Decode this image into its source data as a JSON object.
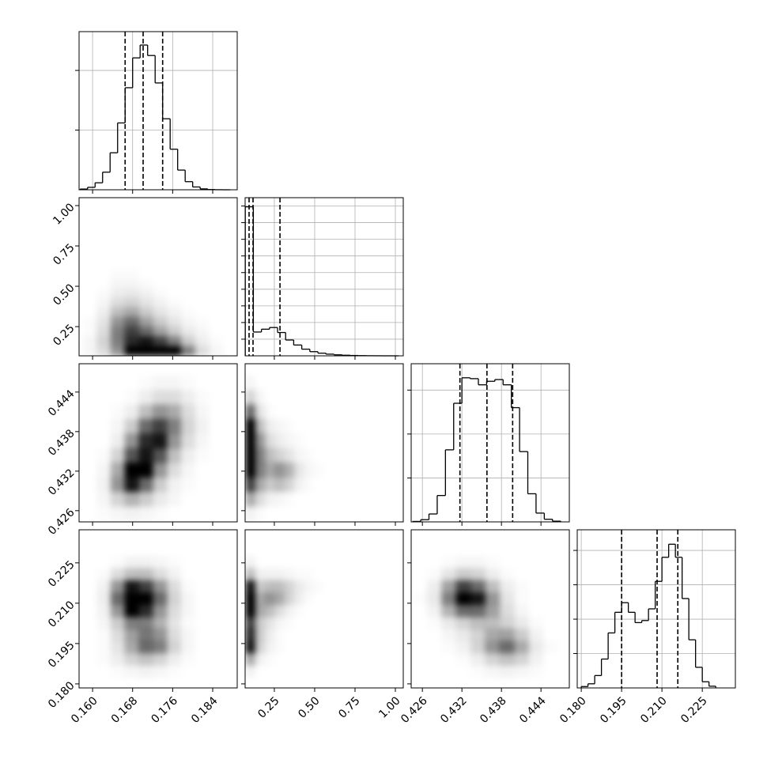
{
  "chart_data": {
    "type": "corner",
    "params": [
      {
        "lim": [
          0.1573,
          0.1889
        ],
        "ticks": [
          {
            "value": 0.16,
            "label": "0.160"
          },
          0.168,
          0.176,
          0.184
        ],
        "hist_bins": [
          0.1575,
          0.159,
          0.1605,
          0.162,
          0.1635,
          0.165,
          0.1665,
          0.168,
          0.1695,
          0.171,
          0.1725,
          0.174,
          0.1755,
          0.177,
          0.1785,
          0.18,
          0.1815,
          0.183,
          0.1845,
          0.186,
          0.1875
        ],
        "hist_counts": [
          12,
          41,
          117,
          295,
          620,
          1120,
          1710,
          2210,
          2425,
          2250,
          1790,
          1190,
          680,
          330,
          136,
          47,
          15,
          4,
          1,
          0
        ],
        "hist_ylim": [
          0,
          2650
        ],
        "hist_yticks": [
          1000,
          2000
        ],
        "quantiles": [
          0.1665,
          0.1701,
          0.174
        ],
        "density_edges": [
          0.158,
          0.1608,
          0.1636,
          0.1664,
          0.1692,
          0.172,
          0.1748,
          0.1776,
          0.1804,
          0.1832,
          0.186
        ]
      },
      {
        "lim": [
          0.069,
          1.049
        ],
        "ticks": [
          0.25,
          {
            "value": 0.5,
            "label": "0.50"
          },
          0.75,
          {
            "value": 1,
            "label": "1.00"
          }
        ],
        "hist_bins": [
          0.07,
          0.12,
          0.17,
          0.22,
          0.27,
          0.32,
          0.37,
          0.42,
          0.47,
          0.52,
          0.57,
          0.62,
          0.67,
          0.72,
          0.77,
          0.82,
          0.87,
          0.92,
          0.97,
          1.02
        ],
        "hist_counts": [
          8950,
          1430,
          1600,
          1700,
          1400,
          950,
          650,
          400,
          250,
          160,
          100,
          60,
          35,
          20,
          12,
          6,
          3,
          1,
          0
        ],
        "hist_ylim": [
          0,
          9500
        ],
        "hist_yticks": [
          1000,
          2000,
          3000,
          4000,
          5000,
          6000,
          7000,
          8000,
          9000
        ],
        "quantiles": [
          0.0935,
          0.118,
          0.285
        ],
        "density_edges": [
          0.07,
          0.13,
          0.19,
          0.25,
          0.31,
          0.37,
          0.43,
          0.49,
          0.55,
          0.61,
          0.67
        ]
      },
      {
        "lim": [
          0.4243,
          0.4483
        ],
        "ticks": [
          0.426,
          0.432,
          0.438,
          0.444
        ],
        "hist_bins": [
          0.4245,
          0.42575,
          0.427,
          0.42825,
          0.4295,
          0.43075,
          0.432,
          0.43325,
          0.4345,
          0.43575,
          0.437,
          0.43825,
          0.4395,
          0.44075,
          0.442,
          0.44325,
          0.4445,
          0.44575,
          0.447
        ],
        "hist_counts": [
          5,
          25,
          90,
          300,
          820,
          1350,
          1640,
          1630,
          1560,
          1600,
          1620,
          1560,
          1300,
          800,
          320,
          100,
          30,
          8
        ],
        "hist_ylim": [
          0,
          1800
        ],
        "hist_yticks": [
          500,
          1000,
          1500
        ],
        "quantiles": [
          0.4317,
          0.4358,
          0.4397
        ],
        "density_edges": [
          0.4245,
          0.4267,
          0.4289,
          0.4311,
          0.4333,
          0.4355,
          0.4377,
          0.4399,
          0.4421,
          0.4443,
          0.4465
        ]
      },
      {
        "lim": [
          0.1785,
          0.2373
        ],
        "ticks": [
          {
            "value": 0.18,
            "label": "0.180"
          },
          0.195,
          {
            "value": 0.21,
            "label": "0.210"
          },
          0.225
        ],
        "hist_bins": [
          0.18,
          0.1825,
          0.185,
          0.1875,
          0.19,
          0.1925,
          0.195,
          0.1975,
          0.2,
          0.2025,
          0.205,
          0.2075,
          0.21,
          0.2125,
          0.215,
          0.2175,
          0.22,
          0.2225,
          0.225,
          0.2275,
          0.23
        ],
        "hist_counts": [
          20,
          60,
          180,
          420,
          800,
          1100,
          1240,
          1100,
          950,
          980,
          1150,
          1550,
          1900,
          2090,
          1900,
          1300,
          700,
          300,
          90,
          25
        ],
        "hist_ylim": [
          0,
          2300
        ],
        "hist_yticks": [
          500,
          1000,
          1500,
          2000
        ],
        "quantiles": [
          0.195,
          0.2082,
          0.2159
        ],
        "density_edges": [
          0.1825,
          0.187,
          0.1915,
          0.196,
          0.2005,
          0.205,
          0.2095,
          0.214,
          0.2185,
          0.223,
          0.2275
        ]
      }
    ],
    "pairs": [
      [
        [
          [
            2,
            8,
            25,
            60,
            90,
            100,
            70,
            30,
            8,
            2
          ],
          [
            2,
            10,
            30,
            50,
            55,
            45,
            30,
            12,
            4,
            1
          ],
          [
            1,
            8,
            30,
            45,
            35,
            22,
            12,
            5,
            2,
            0
          ],
          [
            1,
            6,
            25,
            35,
            22,
            12,
            6,
            2,
            1,
            0
          ],
          [
            0,
            4,
            15,
            20,
            12,
            6,
            3,
            1,
            0,
            0
          ],
          [
            0,
            2,
            8,
            10,
            6,
            3,
            1,
            0,
            0,
            0
          ],
          [
            0,
            1,
            4,
            5,
            3,
            1,
            0,
            0,
            0,
            0
          ],
          [
            0,
            0,
            2,
            2,
            1,
            0,
            0,
            0,
            0,
            0
          ],
          [
            0,
            0,
            1,
            1,
            0,
            0,
            0,
            0,
            0,
            0
          ],
          [
            0,
            0,
            0,
            0,
            0,
            0,
            0,
            0,
            0,
            0
          ]
        ]
      ],
      [
        [
          [
            0,
            1,
            2,
            3,
            2,
            1,
            0,
            0,
            0,
            0
          ],
          [
            0,
            2,
            10,
            18,
            12,
            5,
            2,
            0,
            0,
            0
          ],
          [
            0,
            3,
            25,
            55,
            35,
            12,
            3,
            1,
            0,
            0
          ],
          [
            0,
            2,
            20,
            70,
            60,
            25,
            8,
            2,
            0,
            0
          ],
          [
            0,
            1,
            10,
            40,
            55,
            40,
            15,
            4,
            1,
            0
          ],
          [
            0,
            0,
            4,
            25,
            50,
            55,
            25,
            8,
            2,
            0
          ],
          [
            0,
            0,
            2,
            12,
            35,
            45,
            30,
            10,
            3,
            0
          ],
          [
            0,
            0,
            1,
            4,
            15,
            25,
            20,
            8,
            2,
            0
          ],
          [
            0,
            0,
            0,
            1,
            4,
            8,
            8,
            4,
            1,
            0
          ],
          [
            0,
            0,
            0,
            0,
            1,
            2,
            2,
            1,
            0,
            0
          ]
        ],
        [
          [
            3,
            1,
            0,
            0,
            0,
            0,
            0,
            0,
            0,
            0
          ],
          [
            20,
            8,
            3,
            2,
            1,
            0,
            0,
            0,
            0,
            0
          ],
          [
            45,
            20,
            12,
            15,
            10,
            3,
            1,
            0,
            0,
            0
          ],
          [
            70,
            30,
            20,
            25,
            18,
            6,
            2,
            1,
            0,
            0
          ],
          [
            80,
            30,
            15,
            10,
            6,
            2,
            1,
            0,
            0,
            0
          ],
          [
            90,
            25,
            8,
            4,
            2,
            1,
            0,
            0,
            0,
            0
          ],
          [
            70,
            15,
            4,
            2,
            1,
            0,
            0,
            0,
            0,
            0
          ],
          [
            35,
            6,
            1,
            0,
            0,
            0,
            0,
            0,
            0,
            0
          ],
          [
            10,
            2,
            0,
            0,
            0,
            0,
            0,
            0,
            0,
            0
          ],
          [
            2,
            0,
            0,
            0,
            0,
            0,
            0,
            0,
            0,
            0
          ]
        ]
      ],
      [
        [
          [
            0,
            0,
            1,
            2,
            3,
            2,
            1,
            0,
            0,
            0
          ],
          [
            0,
            1,
            4,
            10,
            14,
            10,
            4,
            1,
            0,
            0
          ],
          [
            0,
            1,
            6,
            20,
            35,
            30,
            10,
            2,
            0,
            0
          ],
          [
            0,
            1,
            8,
            22,
            32,
            25,
            8,
            2,
            0,
            0
          ],
          [
            0,
            2,
            12,
            30,
            30,
            18,
            6,
            1,
            0,
            0
          ],
          [
            0,
            3,
            25,
            60,
            50,
            25,
            8,
            2,
            0,
            0
          ],
          [
            0,
            4,
            35,
            85,
            70,
            35,
            10,
            2,
            0,
            0
          ],
          [
            0,
            3,
            25,
            55,
            45,
            25,
            8,
            1,
            0,
            0
          ],
          [
            0,
            1,
            8,
            15,
            15,
            8,
            3,
            0,
            0,
            0
          ],
          [
            0,
            0,
            1,
            3,
            3,
            2,
            1,
            0,
            0,
            0
          ]
        ],
        [
          [
            3,
            0,
            0,
            0,
            0,
            0,
            0,
            0,
            0,
            0
          ],
          [
            20,
            3,
            1,
            0,
            0,
            0,
            0,
            0,
            0,
            0
          ],
          [
            55,
            10,
            3,
            1,
            0,
            0,
            0,
            0,
            0,
            0
          ],
          [
            50,
            12,
            4,
            1,
            0,
            0,
            0,
            0,
            0,
            0
          ],
          [
            45,
            12,
            6,
            2,
            1,
            0,
            0,
            0,
            0,
            0
          ],
          [
            70,
            20,
            15,
            8,
            3,
            1,
            0,
            0,
            0,
            0
          ],
          [
            85,
            20,
            25,
            20,
            10,
            4,
            1,
            0,
            0,
            0
          ],
          [
            55,
            12,
            15,
            15,
            10,
            5,
            2,
            1,
            0,
            0
          ],
          [
            15,
            3,
            3,
            3,
            2,
            1,
            1,
            0,
            0,
            0
          ],
          [
            3,
            0,
            0,
            0,
            0,
            0,
            0,
            0,
            0,
            0
          ]
        ],
        [
          [
            0,
            0,
            0,
            0,
            1,
            2,
            3,
            2,
            1,
            0
          ],
          [
            0,
            0,
            0,
            1,
            4,
            10,
            14,
            10,
            3,
            0
          ],
          [
            0,
            0,
            1,
            3,
            10,
            25,
            35,
            20,
            5,
            1
          ],
          [
            0,
            0,
            2,
            5,
            10,
            20,
            22,
            12,
            3,
            0
          ],
          [
            0,
            1,
            5,
            10,
            15,
            15,
            10,
            5,
            1,
            0
          ],
          [
            0,
            3,
            18,
            35,
            35,
            22,
            8,
            2,
            0,
            0
          ],
          [
            1,
            5,
            30,
            70,
            55,
            25,
            6,
            1,
            0,
            0
          ],
          [
            0,
            4,
            22,
            45,
            35,
            15,
            4,
            1,
            0,
            0
          ],
          [
            0,
            1,
            6,
            12,
            10,
            4,
            1,
            0,
            0,
            0
          ],
          [
            0,
            0,
            1,
            2,
            2,
            1,
            0,
            0,
            0,
            0
          ]
        ]
      ]
    ],
    "hist_grid": true
  }
}
